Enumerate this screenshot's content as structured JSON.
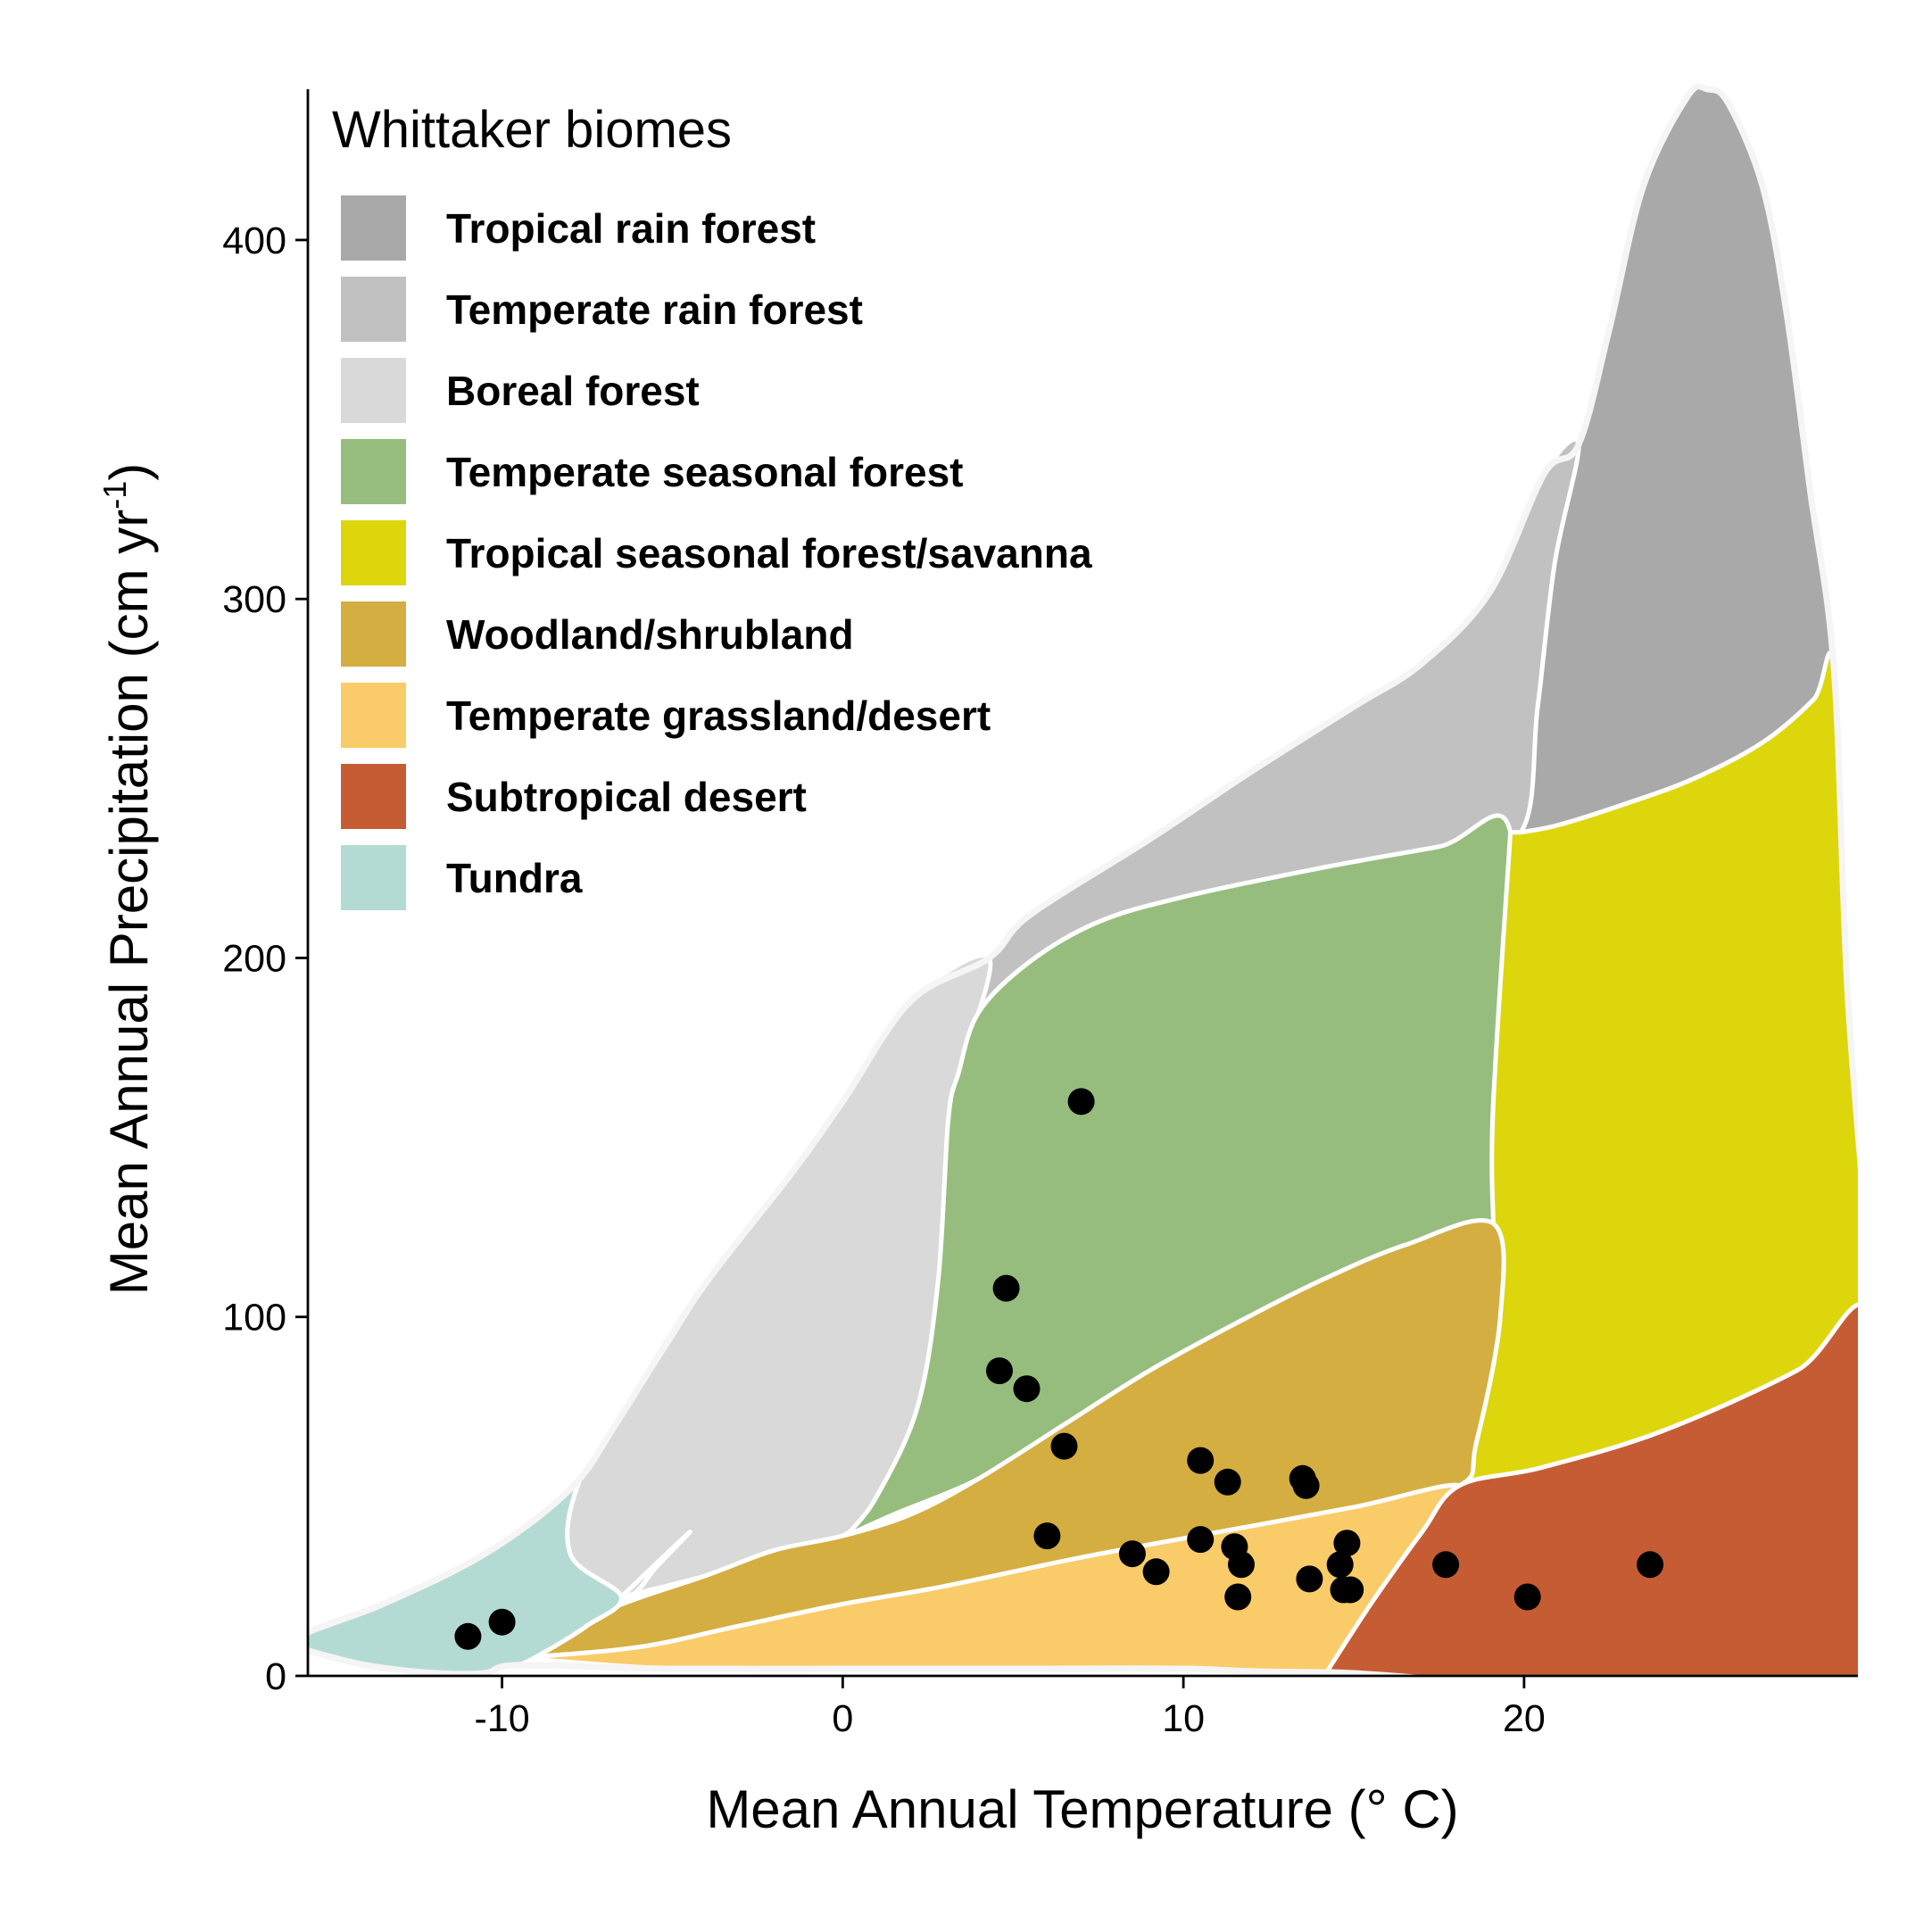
{
  "chart_data": {
    "type": "scatter",
    "title": "",
    "xlabel": "Mean Annual Temperature (",
    "xlabel_unit": "° C",
    "xlabel_close": ")",
    "ylabel": "Mean Annual Precipitation (cm yr",
    "ylabel_sup": "-1",
    "ylabel_close": ")",
    "xlim": [
      -15.7,
      29.8
    ],
    "ylim": [
      0,
      442
    ],
    "x_ticks": [
      -10,
      0,
      10,
      20
    ],
    "x_tick_labels": [
      "-10",
      "0",
      "10",
      "20"
    ],
    "y_ticks": [
      0,
      100,
      200,
      300,
      400
    ],
    "y_tick_labels": [
      "0",
      "100",
      "200",
      "300",
      "400"
    ],
    "grid": false,
    "legend": {
      "title": "Whittaker biomes",
      "position": "top-left",
      "entries": [
        {
          "label": "Tropical rain forest",
          "color": "#a9a9a9"
        },
        {
          "label": "Temperate rain forest",
          "color": "#c1c1c1"
        },
        {
          "label": "Boreal forest",
          "color": "#d9d9d9"
        },
        {
          "label": "Temperate seasonal forest",
          "color": "#97bd7e"
        },
        {
          "label": "Tropical seasonal forest/savanna",
          "color": "#ded60d"
        },
        {
          "label": "Woodland/shrubland",
          "color": "#d4ae41"
        },
        {
          "label": "Temperate grassland/desert",
          "color": "#f9cc69"
        },
        {
          "label": "Subtropical desert",
          "color": "#c65c34"
        },
        {
          "label": "Tundra",
          "color": "#b4dbd3"
        }
      ]
    },
    "biome_regions": [
      {
        "name": "Tropical rain forest",
        "color": "#a9a9a9",
        "boundary": [
          [
            19.9,
            235
          ],
          [
            21,
            237
          ],
          [
            23,
            243
          ],
          [
            25,
            250
          ],
          [
            27,
            260
          ],
          [
            28.5,
            272
          ],
          [
            29.1,
            280
          ],
          [
            28.4,
            330
          ],
          [
            27.7,
            380
          ],
          [
            27,
            415
          ],
          [
            26,
            438
          ],
          [
            25.4,
            442
          ],
          [
            24.8,
            440
          ],
          [
            23.5,
            415
          ],
          [
            22.5,
            375
          ],
          [
            21.6,
            343
          ],
          [
            20.9,
            310
          ],
          [
            20.4,
            270
          ],
          [
            19.9,
            235
          ]
        ]
      },
      {
        "name": "Temperate rain forest",
        "color": "#c1c1c1",
        "boundary": [
          [
            4.3,
            200
          ],
          [
            5.5,
            212
          ],
          [
            9,
            233
          ],
          [
            12,
            252
          ],
          [
            15,
            270
          ],
          [
            17,
            282
          ],
          [
            19,
            302
          ],
          [
            20.6,
            335
          ],
          [
            21.6,
            343
          ],
          [
            20.9,
            310
          ],
          [
            20.4,
            270
          ],
          [
            19.9,
            235
          ],
          [
            17.5,
            231
          ],
          [
            14,
            225
          ],
          [
            10,
            217
          ],
          [
            7.5,
            210
          ],
          [
            5.5,
            199
          ],
          [
            4,
            185
          ],
          [
            3.4,
            168
          ],
          [
            4.3,
            200
          ]
        ]
      },
      {
        "name": "Boreal forest",
        "color": "#d9d9d9",
        "boundary": [
          [
            -6.5,
            22
          ],
          [
            -4.5,
            40
          ],
          [
            -5.5,
            30
          ],
          [
            -6,
            24
          ],
          [
            -6.5,
            22
          ],
          [
            -8,
            34
          ],
          [
            -7.7,
            55
          ],
          [
            -6,
            82
          ],
          [
            -4.2,
            107
          ],
          [
            -1.5,
            140
          ],
          [
            0,
            160
          ],
          [
            2,
            188
          ],
          [
            4.3,
            200
          ],
          [
            3.4,
            168
          ],
          [
            3.1,
            155
          ],
          [
            2.8,
            110
          ],
          [
            2.2,
            75
          ],
          [
            1,
            50
          ],
          [
            0,
            39
          ],
          [
            -2,
            35
          ],
          [
            -4,
            28
          ],
          [
            -6.5,
            22
          ]
        ]
      },
      {
        "name": "Temperate seasonal forest",
        "color": "#97bd7e",
        "boundary": [
          [
            0.1,
            39
          ],
          [
            1.5,
            45
          ],
          [
            4,
            55
          ],
          [
            6.5,
            70
          ],
          [
            9,
            85
          ],
          [
            11.5,
            98
          ],
          [
            14,
            110
          ],
          [
            16.5,
            120
          ],
          [
            19.1,
            126
          ],
          [
            19.1,
            140
          ],
          [
            19.1,
            160
          ],
          [
            19.6,
            235
          ],
          [
            17.5,
            231
          ],
          [
            14,
            225
          ],
          [
            10,
            217
          ],
          [
            7.5,
            210
          ],
          [
            5.5,
            199
          ],
          [
            4,
            185
          ],
          [
            3.4,
            168
          ],
          [
            3.1,
            155
          ],
          [
            2.8,
            110
          ],
          [
            2.2,
            75
          ],
          [
            1,
            50
          ],
          [
            0.1,
            39
          ]
        ]
      },
      {
        "name": "Tropical seasonal forest/savanna",
        "color": "#ded60d",
        "boundary": [
          [
            19.9,
            235
          ],
          [
            21,
            237
          ],
          [
            23,
            243
          ],
          [
            25,
            250
          ],
          [
            27,
            260
          ],
          [
            28.5,
            272
          ],
          [
            29.1,
            280
          ],
          [
            29.5,
            190
          ],
          [
            30.2,
            99
          ],
          [
            28,
            85
          ],
          [
            24,
            68
          ],
          [
            20.5,
            58
          ],
          [
            18.1,
            53
          ],
          [
            18.6,
            65
          ],
          [
            19.3,
            100
          ],
          [
            19.1,
            126
          ],
          [
            19.1,
            160
          ],
          [
            19.6,
            235
          ]
        ]
      },
      {
        "name": "Woodland/shrubland",
        "color": "#d4ae41",
        "boundary": [
          [
            -9.5,
            5
          ],
          [
            -7,
            18
          ],
          [
            -4,
            28
          ],
          [
            -2,
            35
          ],
          [
            0,
            39
          ],
          [
            2,
            45
          ],
          [
            4,
            55
          ],
          [
            6.5,
            70
          ],
          [
            9,
            85
          ],
          [
            11.5,
            98
          ],
          [
            14,
            110
          ],
          [
            16.5,
            120
          ],
          [
            19.1,
            126
          ],
          [
            19.3,
            100
          ],
          [
            18.6,
            65
          ],
          [
            18.1,
            53
          ],
          [
            15,
            47
          ],
          [
            11,
            40
          ],
          [
            7,
            33
          ],
          [
            3,
            25
          ],
          [
            0,
            20
          ],
          [
            -3,
            14
          ],
          [
            -6,
            8
          ],
          [
            -9.5,
            5
          ]
        ]
      },
      {
        "name": "Temperate grassland/desert",
        "color": "#f9cc69",
        "boundary": [
          [
            -9.5,
            5
          ],
          [
            -6,
            8
          ],
          [
            -3,
            14
          ],
          [
            0,
            20
          ],
          [
            3,
            25
          ],
          [
            7,
            33
          ],
          [
            11,
            40
          ],
          [
            15,
            47
          ],
          [
            18.1,
            53
          ],
          [
            17,
            40
          ],
          [
            15.5,
            20
          ],
          [
            14.2,
            1
          ],
          [
            10,
            2
          ],
          [
            5,
            2
          ],
          [
            0,
            2
          ],
          [
            -5,
            2
          ],
          [
            -9.5,
            5
          ]
        ]
      },
      {
        "name": "Subtropical desert",
        "color": "#c65c34",
        "boundary": [
          [
            14.2,
            1
          ],
          [
            15.5,
            20
          ],
          [
            17,
            40
          ],
          [
            18.1,
            53
          ],
          [
            20.5,
            58
          ],
          [
            24,
            68
          ],
          [
            28,
            85
          ],
          [
            30.2,
            99
          ],
          [
            30.5,
            1
          ],
          [
            14.2,
            1
          ]
        ]
      },
      {
        "name": "Tundra",
        "color": "#b4dbd3",
        "boundary": [
          [
            -15.7,
            12
          ],
          [
            -13.5,
            20
          ],
          [
            -10.5,
            34
          ],
          [
            -8,
            52
          ],
          [
            -6.6,
            71
          ],
          [
            -4.2,
            107
          ],
          [
            -6,
            82
          ],
          [
            -7.7,
            55
          ],
          [
            -8,
            34
          ],
          [
            -6.5,
            22
          ],
          [
            -7.5,
            14
          ],
          [
            -8.5,
            8
          ],
          [
            -9.5,
            3
          ],
          [
            -10.5,
            0.8
          ],
          [
            -12,
            0.8
          ],
          [
            -14,
            3
          ],
          [
            -15.7,
            7
          ],
          [
            -15.7,
            12
          ]
        ]
      }
    ],
    "outline": [
      [
        -15.7,
        7
      ],
      [
        -15.7,
        12
      ],
      [
        -13.5,
        20
      ],
      [
        -10.5,
        34
      ],
      [
        -8,
        52
      ],
      [
        -6.6,
        71
      ],
      [
        -4.2,
        107
      ],
      [
        -1.5,
        140
      ],
      [
        0,
        160
      ],
      [
        2,
        188
      ],
      [
        4.3,
        200
      ],
      [
        5.5,
        212
      ],
      [
        9,
        233
      ],
      [
        12,
        252
      ],
      [
        15,
        270
      ],
      [
        17,
        282
      ],
      [
        19,
        302
      ],
      [
        20.6,
        335
      ],
      [
        21.6,
        343
      ],
      [
        22.5,
        375
      ],
      [
        23.5,
        415
      ],
      [
        24.8,
        440
      ],
      [
        25.4,
        442
      ],
      [
        26,
        438
      ],
      [
        27,
        415
      ],
      [
        27.7,
        380
      ],
      [
        28.4,
        330
      ],
      [
        29.1,
        280
      ],
      [
        29.5,
        190
      ],
      [
        30.2,
        99
      ],
      [
        30.5,
        1
      ],
      [
        14.2,
        1
      ],
      [
        10,
        2
      ],
      [
        5,
        2
      ],
      [
        0,
        2
      ],
      [
        -5,
        2
      ],
      [
        -9.5,
        3
      ],
      [
        -10.5,
        0.8
      ],
      [
        -12,
        0.8
      ],
      [
        -14,
        3
      ],
      [
        -15.7,
        7
      ]
    ],
    "series": [
      {
        "marker_color": "#000000",
        "x": [
          7.0,
          4.8,
          4.6,
          5.4,
          6.5,
          6.0,
          10.5,
          11.3,
          13.5,
          13.6,
          8.5,
          9.2,
          10.5,
          11.5,
          11.7,
          11.6,
          13.7,
          14.6,
          14.8,
          14.7,
          14.9,
          17.7,
          20.1,
          23.7,
          -11.0,
          -10.0
        ],
        "y": [
          160,
          108,
          85,
          80,
          64,
          39,
          60,
          54,
          55,
          53,
          34,
          29,
          38,
          36,
          31,
          22,
          27,
          31,
          37,
          24,
          24,
          31,
          22,
          31,
          11,
          15
        ]
      }
    ]
  }
}
